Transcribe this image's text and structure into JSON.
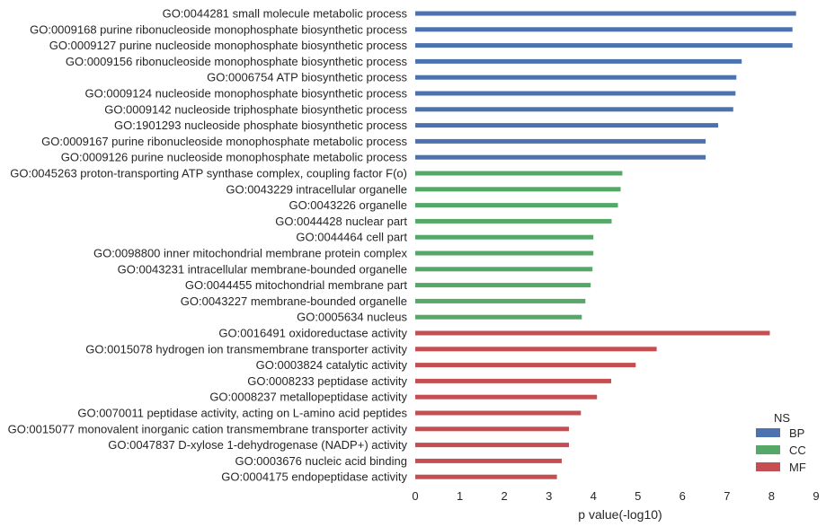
{
  "chart_data": {
    "type": "bar",
    "orientation": "horizontal",
    "xlabel": "p value(-log10)",
    "ylabel": "",
    "title": "",
    "xlim": [
      0,
      9
    ],
    "xticks": [
      0,
      1,
      2,
      3,
      4,
      5,
      6,
      7,
      8,
      9
    ],
    "grid": false,
    "legend": {
      "title": "NS",
      "placement": "bottom-right",
      "entries": [
        {
          "label": "BP",
          "color": "#4c72b0"
        },
        {
          "label": "CC",
          "color": "#55a868"
        },
        {
          "label": "MF",
          "color": "#c44e52"
        }
      ]
    },
    "bars": [
      {
        "label": "GO:0044281 small molecule metabolic process",
        "ns": "BP",
        "value": 8.55
      },
      {
        "label": "GO:0009168 purine ribonucleoside monophosphate biosynthetic process",
        "ns": "BP",
        "value": 8.47
      },
      {
        "label": "GO:0009127 purine nucleoside monophosphate biosynthetic process",
        "ns": "BP",
        "value": 8.47
      },
      {
        "label": "GO:0009156 ribonucleoside monophosphate biosynthetic process",
        "ns": "BP",
        "value": 7.33
      },
      {
        "label": "GO:0006754 ATP biosynthetic process",
        "ns": "BP",
        "value": 7.21
      },
      {
        "label": "GO:0009124 nucleoside monophosphate biosynthetic process",
        "ns": "BP",
        "value": 7.19
      },
      {
        "label": "GO:0009142 nucleoside triphosphate biosynthetic process",
        "ns": "BP",
        "value": 7.14
      },
      {
        "label": "GO:1901293 nucleoside phosphate biosynthetic process",
        "ns": "BP",
        "value": 6.8
      },
      {
        "label": "GO:0009167 purine ribonucleoside monophosphate metabolic process",
        "ns": "BP",
        "value": 6.52
      },
      {
        "label": "GO:0009126 purine nucleoside monophosphate metabolic process",
        "ns": "BP",
        "value": 6.52
      },
      {
        "label": "GO:0045263 proton-transporting ATP synthase complex, coupling factor F(o)",
        "ns": "CC",
        "value": 4.65
      },
      {
        "label": "GO:0043229 intracellular organelle",
        "ns": "CC",
        "value": 4.61
      },
      {
        "label": "GO:0043226 organelle",
        "ns": "CC",
        "value": 4.55
      },
      {
        "label": "GO:0044428 nuclear part",
        "ns": "CC",
        "value": 4.41
      },
      {
        "label": "GO:0044464 cell part",
        "ns": "CC",
        "value": 4.0
      },
      {
        "label": "GO:0098800 inner mitochondrial membrane protein complex",
        "ns": "CC",
        "value": 4.0
      },
      {
        "label": "GO:0043231 intracellular membrane-bounded organelle",
        "ns": "CC",
        "value": 3.98
      },
      {
        "label": "GO:0044455 mitochondrial membrane part",
        "ns": "CC",
        "value": 3.94
      },
      {
        "label": "GO:0043227 membrane-bounded organelle",
        "ns": "CC",
        "value": 3.82
      },
      {
        "label": "GO:0005634 nucleus",
        "ns": "CC",
        "value": 3.74
      },
      {
        "label": "GO:0016491 oxidoreductase activity",
        "ns": "MF",
        "value": 7.96
      },
      {
        "label": "GO:0015078 hydrogen ion transmembrane transporter activity",
        "ns": "MF",
        "value": 5.42
      },
      {
        "label": "GO:0003824 catalytic activity",
        "ns": "MF",
        "value": 4.95
      },
      {
        "label": "GO:0008233 peptidase activity",
        "ns": "MF",
        "value": 4.4
      },
      {
        "label": "GO:0008237 metallopeptidase activity",
        "ns": "MF",
        "value": 4.08
      },
      {
        "label": "GO:0070011 peptidase activity, acting on L-amino acid peptides",
        "ns": "MF",
        "value": 3.72
      },
      {
        "label": "GO:0015077 monovalent inorganic cation transmembrane transporter activity",
        "ns": "MF",
        "value": 3.45
      },
      {
        "label": "GO:0047837 D-xylose 1-dehydrogenase (NADP+) activity",
        "ns": "MF",
        "value": 3.45
      },
      {
        "label": "GO:0003676 nucleic acid binding",
        "ns": "MF",
        "value": 3.29
      },
      {
        "label": "GO:0004175 endopeptidase activity",
        "ns": "MF",
        "value": 3.18
      }
    ]
  }
}
